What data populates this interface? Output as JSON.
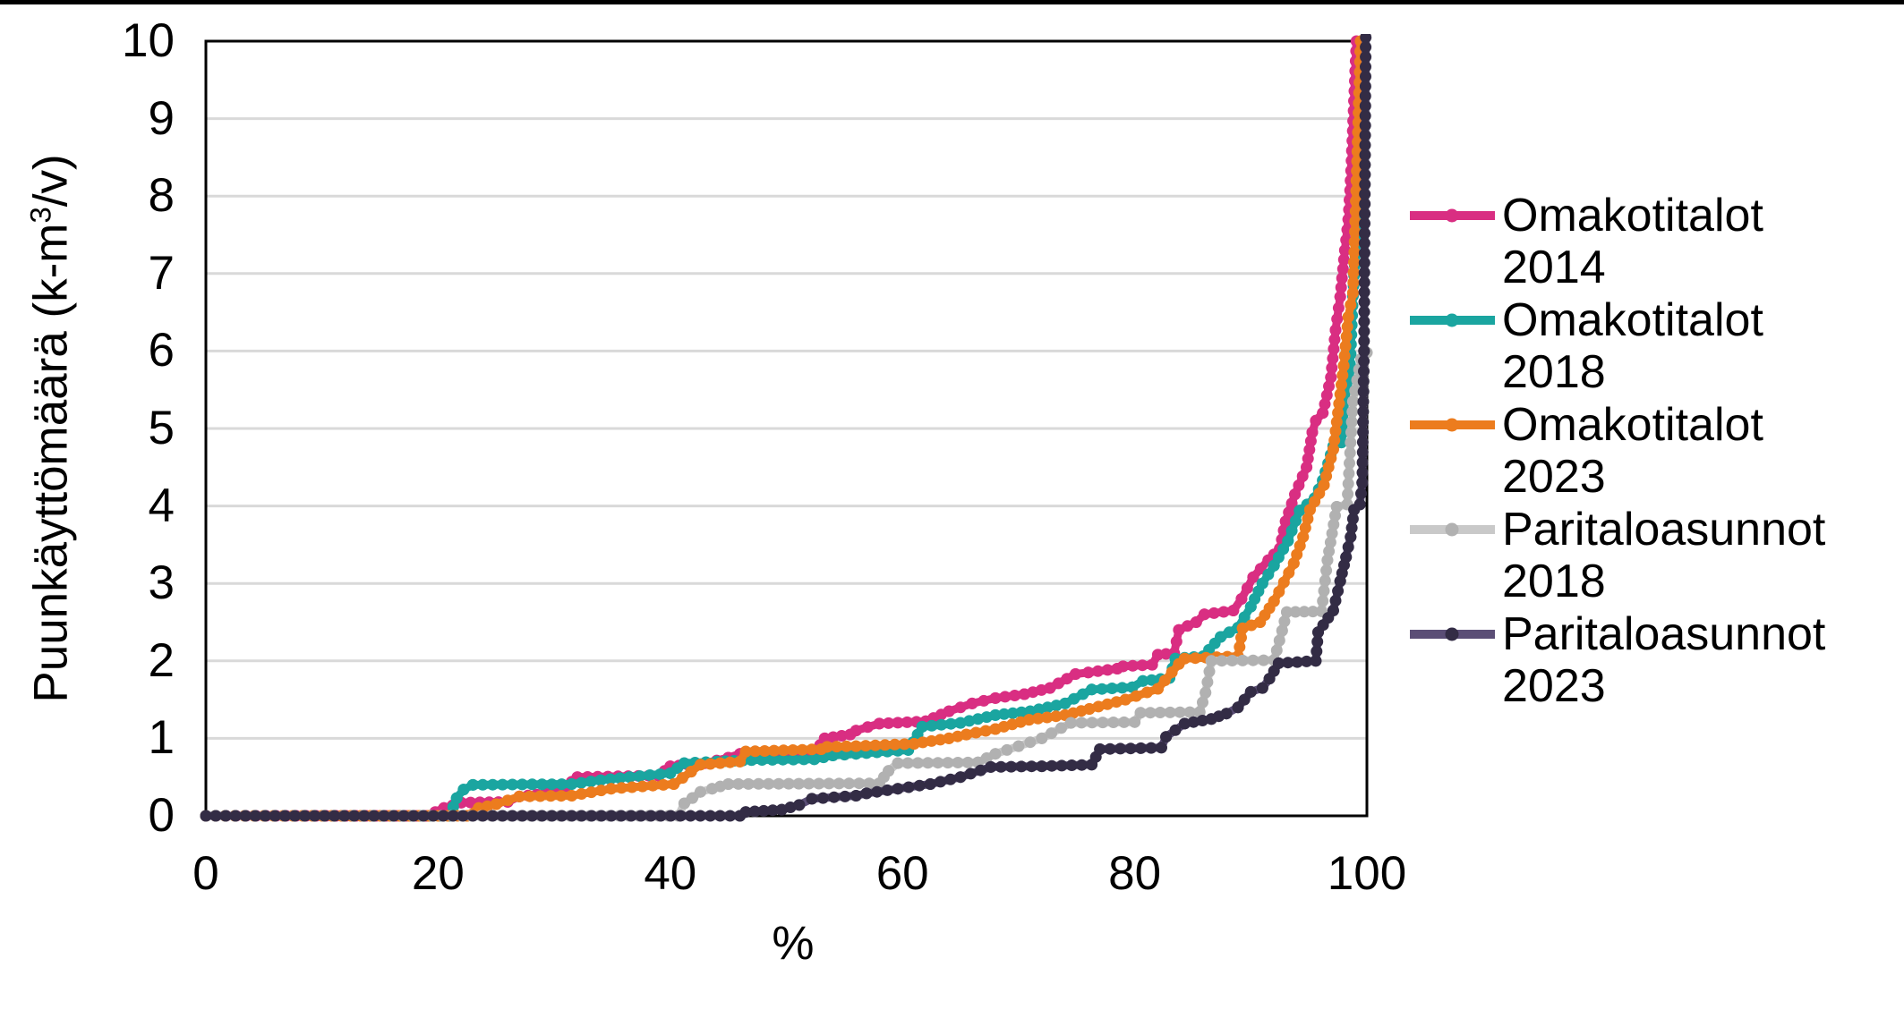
{
  "chart_data": {
    "type": "line",
    "title": "",
    "xlabel": "%",
    "ylabel": "Puunkäyttömäärä (k-m³/v)",
    "ylabel_pre": "Puunkäyttömäärä (k-m",
    "ylabel_sup": "3",
    "ylabel_post": "/v)",
    "xlim": [
      0,
      100
    ],
    "ylim": [
      0,
      10
    ],
    "x_ticks": [
      0,
      20,
      40,
      60,
      80,
      100
    ],
    "y_ticks": [
      0,
      1,
      2,
      3,
      4,
      5,
      6,
      7,
      8,
      9,
      10
    ],
    "grid": "horizontal",
    "gridline_color": "#D9D9D9",
    "axis_color": "#000000",
    "legend_position": "right",
    "series": [
      {
        "name": "Omakotitalot 2014",
        "label_line1": "Omakotitalot",
        "label_line2": "2014",
        "color": "#D92E82",
        "marker_color": "#D92E82",
        "points": [
          [
            0,
            0
          ],
          [
            19,
            0
          ],
          [
            20.5,
            0.1
          ],
          [
            22,
            0.17
          ],
          [
            26,
            0.18
          ],
          [
            27,
            0.25
          ],
          [
            30,
            0.3
          ],
          [
            31,
            0.38
          ],
          [
            32,
            0.5
          ],
          [
            39,
            0.52
          ],
          [
            40,
            0.64
          ],
          [
            43,
            0.68
          ],
          [
            45,
            0.75
          ],
          [
            46,
            0.8
          ],
          [
            52.5,
            0.83
          ],
          [
            53.3,
            1.0
          ],
          [
            55.5,
            1.05
          ],
          [
            56,
            1.1
          ],
          [
            58,
            1.19
          ],
          [
            62,
            1.22
          ],
          [
            64,
            1.35
          ],
          [
            66,
            1.45
          ],
          [
            68,
            1.52
          ],
          [
            70.5,
            1.57
          ],
          [
            72.7,
            1.65
          ],
          [
            74.9,
            1.83
          ],
          [
            76,
            1.85
          ],
          [
            78.5,
            1.9
          ],
          [
            79,
            1.93
          ],
          [
            81.5,
            1.95
          ],
          [
            82,
            2.08
          ],
          [
            83.4,
            2.1
          ],
          [
            83.8,
            2.4
          ],
          [
            85.3,
            2.5
          ],
          [
            86,
            2.6
          ],
          [
            88.5,
            2.65
          ],
          [
            89.2,
            2.8
          ],
          [
            90.2,
            3.08
          ],
          [
            91.5,
            3.3
          ],
          [
            92.5,
            3.45
          ],
          [
            93,
            3.8
          ],
          [
            93.8,
            4.15
          ],
          [
            94.8,
            4.5
          ],
          [
            95.3,
            4.95
          ],
          [
            95.6,
            5.1
          ],
          [
            96.2,
            5.2
          ],
          [
            96.9,
            5.66
          ],
          [
            97.3,
            6.27
          ],
          [
            97.7,
            6.7
          ],
          [
            98.1,
            7.3
          ],
          [
            98.4,
            7.7
          ],
          [
            98.6,
            8.2
          ],
          [
            99.1,
            10
          ]
        ]
      },
      {
        "name": "Omakotitalot 2018",
        "label_line1": "Omakotitalot",
        "label_line2": "2018",
        "color": "#1AA5A0",
        "marker_color": "#1AA5A0",
        "points": [
          [
            0,
            0
          ],
          [
            21,
            0
          ],
          [
            21.6,
            0.23
          ],
          [
            22.2,
            0.34
          ],
          [
            23,
            0.4
          ],
          [
            31.5,
            0.41
          ],
          [
            34,
            0.46
          ],
          [
            36.5,
            0.5
          ],
          [
            40,
            0.55
          ],
          [
            41.2,
            0.68
          ],
          [
            44,
            0.7
          ],
          [
            47,
            0.72
          ],
          [
            52.4,
            0.73
          ],
          [
            54,
            0.78
          ],
          [
            56,
            0.8
          ],
          [
            60.5,
            0.85
          ],
          [
            61.7,
            1.15
          ],
          [
            65,
            1.2
          ],
          [
            68,
            1.3
          ],
          [
            71,
            1.35
          ],
          [
            74,
            1.45
          ],
          [
            76.3,
            1.63
          ],
          [
            79.8,
            1.66
          ],
          [
            80.7,
            1.74
          ],
          [
            83,
            1.78
          ],
          [
            83.5,
            2.03
          ],
          [
            85.9,
            2.06
          ],
          [
            87.4,
            2.31
          ],
          [
            88.9,
            2.43
          ],
          [
            90,
            2.7
          ],
          [
            91,
            3.0
          ],
          [
            92,
            3.23
          ],
          [
            93.2,
            3.55
          ],
          [
            94.2,
            3.94
          ],
          [
            95.5,
            4.1
          ],
          [
            96.2,
            4.33
          ],
          [
            97.1,
            4.77
          ],
          [
            97.8,
            4.82
          ],
          [
            98.3,
            5.32
          ],
          [
            98.6,
            5.96
          ],
          [
            98.8,
            6.71
          ],
          [
            99.1,
            7.5
          ],
          [
            99.4,
            8.6
          ],
          [
            99.7,
            10
          ]
        ]
      },
      {
        "name": "Omakotitalot 2023",
        "label_line1": "Omakotitalot",
        "label_line2": "2023",
        "color": "#EC7C1E",
        "marker_color": "#EC7C1E",
        "points": [
          [
            0,
            0
          ],
          [
            22.5,
            0
          ],
          [
            23.5,
            0.1
          ],
          [
            25,
            0.15
          ],
          [
            27,
            0.25
          ],
          [
            31.5,
            0.26
          ],
          [
            34.9,
            0.35
          ],
          [
            40.3,
            0.41
          ],
          [
            41.8,
            0.57
          ],
          [
            42.6,
            0.66
          ],
          [
            46,
            0.7
          ],
          [
            46.5,
            0.83
          ],
          [
            53,
            0.86
          ],
          [
            53.5,
            0.89
          ],
          [
            56,
            0.9
          ],
          [
            61,
            0.93
          ],
          [
            64,
            1.0
          ],
          [
            65.5,
            1.05
          ],
          [
            68,
            1.12
          ],
          [
            70.9,
            1.24
          ],
          [
            74,
            1.3
          ],
          [
            76.1,
            1.38
          ],
          [
            79.2,
            1.5
          ],
          [
            82,
            1.64
          ],
          [
            83.8,
            1.96
          ],
          [
            84.3,
            2.03
          ],
          [
            88.9,
            2.06
          ],
          [
            89.3,
            2.42
          ],
          [
            90.8,
            2.5
          ],
          [
            92,
            2.77
          ],
          [
            93.7,
            3.26
          ],
          [
            94.5,
            3.6
          ],
          [
            95.1,
            3.95
          ],
          [
            96.3,
            4.27
          ],
          [
            97.1,
            4.73
          ],
          [
            97.6,
            5.32
          ],
          [
            98,
            5.81
          ],
          [
            98.4,
            6.44
          ],
          [
            98.8,
            6.75
          ],
          [
            99.1,
            8.2
          ],
          [
            99.3,
            9.2
          ],
          [
            99.45,
            10
          ]
        ]
      },
      {
        "name": "Paritaloasunnot 2018",
        "label_line1": "Paritaloasunnot",
        "label_line2": "2018",
        "color": "#C9C9C9",
        "marker_color": "#B1B1B1",
        "points": [
          [
            0,
            0
          ],
          [
            40.7,
            0
          ],
          [
            41.2,
            0.16
          ],
          [
            41.9,
            0.23
          ],
          [
            42.6,
            0.31
          ],
          [
            43.6,
            0.35
          ],
          [
            45,
            0.41
          ],
          [
            58,
            0.42
          ],
          [
            58.8,
            0.58
          ],
          [
            59.6,
            0.68
          ],
          [
            66.5,
            0.69
          ],
          [
            68,
            0.8
          ],
          [
            70,
            0.9
          ],
          [
            72,
            1.0
          ],
          [
            74.5,
            1.2
          ],
          [
            80,
            1.21
          ],
          [
            80.5,
            1.33
          ],
          [
            85.6,
            1.34
          ],
          [
            86.1,
            1.59
          ],
          [
            86.6,
            2.0
          ],
          [
            92,
            2.01
          ],
          [
            92.7,
            2.39
          ],
          [
            93.1,
            2.63
          ],
          [
            96.1,
            2.64
          ],
          [
            96.6,
            3.3
          ],
          [
            97.4,
            3.99
          ],
          [
            98.3,
            4.02
          ],
          [
            98.8,
            5.35
          ],
          [
            99.5,
            5.9
          ],
          [
            100,
            5.98
          ]
        ]
      },
      {
        "name": "Paritaloasunnot 2023",
        "label_line1": "Paritaloasunnot",
        "label_line2": "2023",
        "color": "#5B4E76",
        "marker_color": "#332C45",
        "points": [
          [
            0,
            0
          ],
          [
            46,
            0
          ],
          [
            46.5,
            0.05
          ],
          [
            49.6,
            0.08
          ],
          [
            51.1,
            0.14
          ],
          [
            52.2,
            0.22
          ],
          [
            56,
            0.26
          ],
          [
            56.9,
            0.29
          ],
          [
            59.6,
            0.35
          ],
          [
            62.4,
            0.41
          ],
          [
            65,
            0.5
          ],
          [
            67.6,
            0.63
          ],
          [
            72,
            0.64
          ],
          [
            76.3,
            0.66
          ],
          [
            77,
            0.86
          ],
          [
            82.3,
            0.88
          ],
          [
            82.7,
            1.02
          ],
          [
            84.3,
            1.19
          ],
          [
            86.6,
            1.25
          ],
          [
            87.9,
            1.32
          ],
          [
            88.9,
            1.4
          ],
          [
            90,
            1.6
          ],
          [
            91,
            1.65
          ],
          [
            91.6,
            1.77
          ],
          [
            92.4,
            1.97
          ],
          [
            95.6,
            2.0
          ],
          [
            95.8,
            2.37
          ],
          [
            97.1,
            2.65
          ],
          [
            97.7,
            3.03
          ],
          [
            98.2,
            3.34
          ],
          [
            98.6,
            3.6
          ],
          [
            98.9,
            3.95
          ],
          [
            99.4,
            4.02
          ],
          [
            99.6,
            4.3
          ],
          [
            99.75,
            6.0
          ],
          [
            99.9,
            10.05
          ]
        ]
      }
    ]
  }
}
